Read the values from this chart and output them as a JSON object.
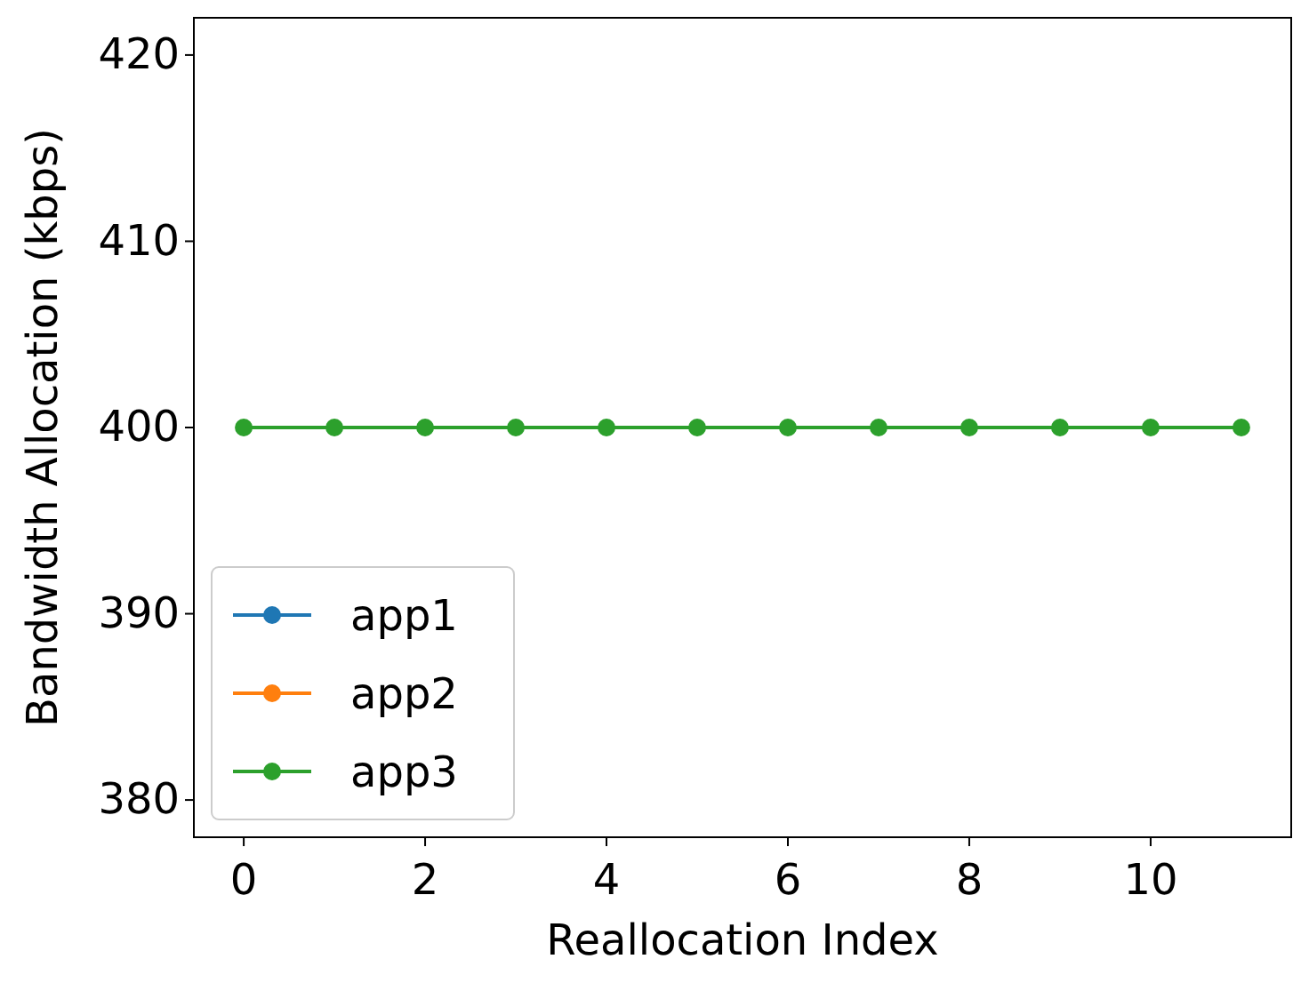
{
  "chart_data": {
    "type": "line",
    "xlabel": "Reallocation Index",
    "ylabel": "Bandwidth Allocation (kbps)",
    "x": [
      0,
      1,
      2,
      3,
      4,
      5,
      6,
      7,
      8,
      9,
      10,
      11
    ],
    "series": [
      {
        "name": "app1",
        "color": "#1f77b4",
        "values": [
          null,
          null,
          null,
          null,
          null,
          null,
          null,
          null,
          null,
          null,
          null,
          null
        ]
      },
      {
        "name": "app2",
        "color": "#ff7f0e",
        "values": [
          null,
          null,
          null,
          null,
          null,
          null,
          null,
          null,
          null,
          null,
          null,
          null
        ]
      },
      {
        "name": "app3",
        "color": "#2ca02c",
        "values": [
          400,
          400,
          400,
          400,
          400,
          400,
          400,
          400,
          400,
          400,
          400,
          400
        ]
      }
    ],
    "xlim": [
      -0.55,
      11.55
    ],
    "xticks": [
      0,
      2,
      4,
      6,
      8,
      10
    ],
    "ylim": [
      378,
      422
    ],
    "yticks": [
      380,
      390,
      400,
      410,
      420
    ],
    "marker": "circle",
    "line_style": "solid",
    "legend": "bottom left",
    "grid": false
  }
}
